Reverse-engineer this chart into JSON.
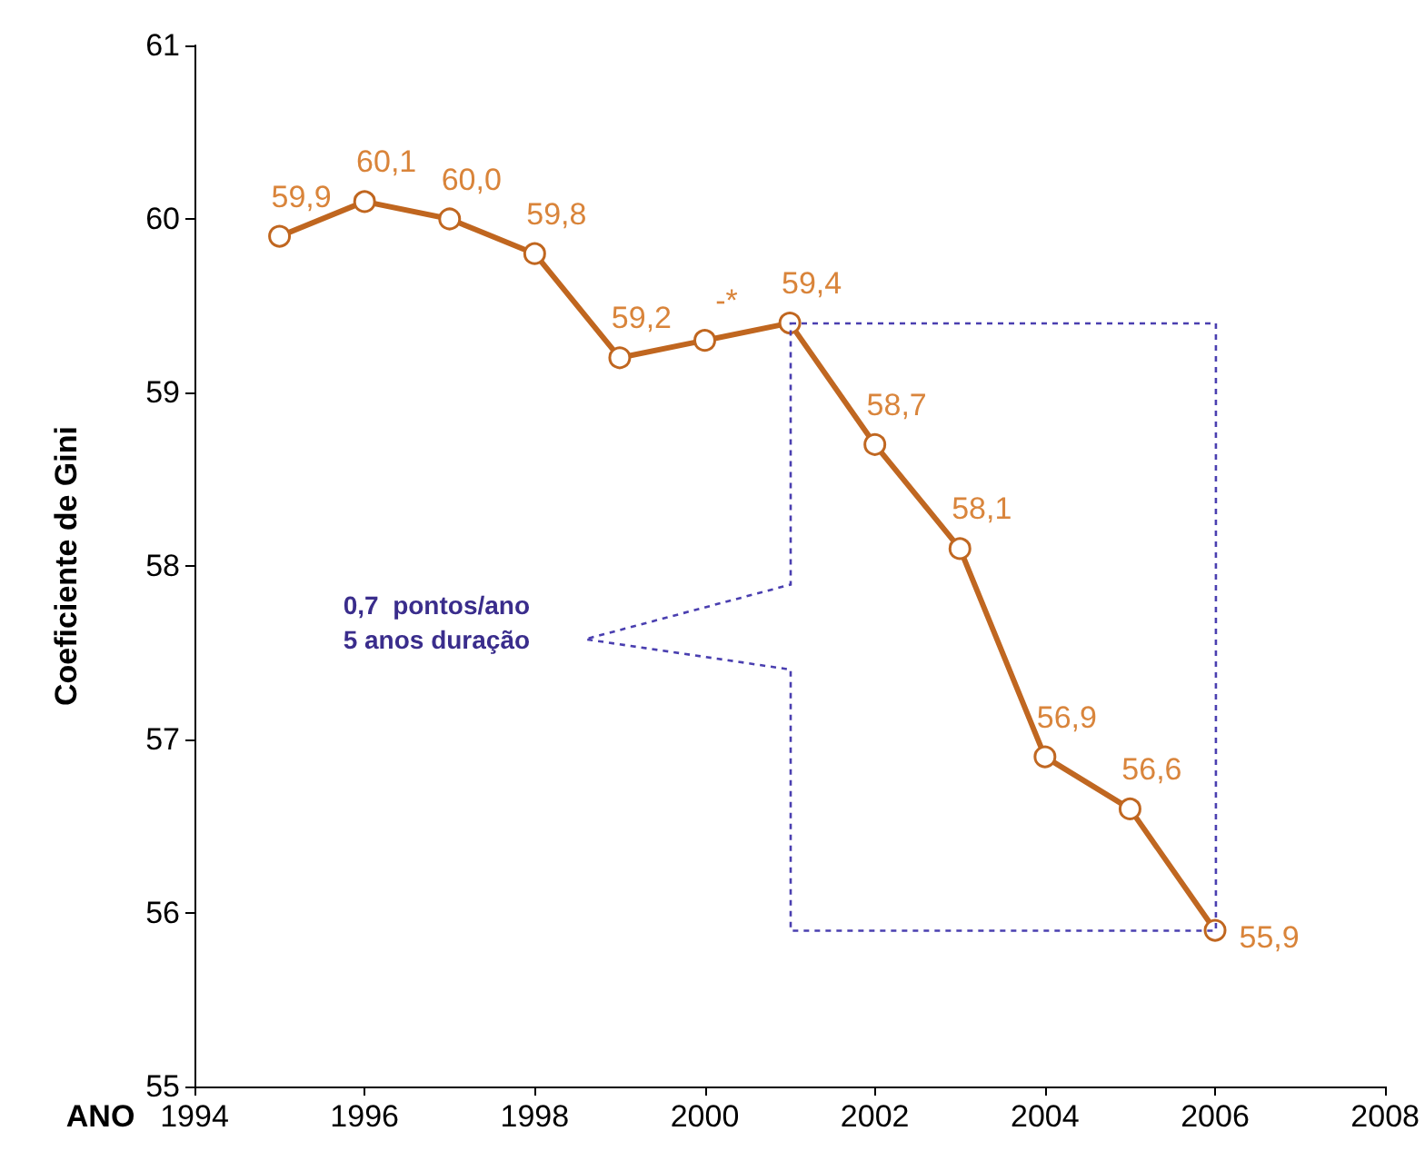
{
  "chart_data": {
    "type": "line",
    "xlabel": "ANO",
    "ylabel": "Coeficiente de Gini",
    "x": [
      1995,
      1996,
      1997,
      1998,
      1999,
      2000,
      2001,
      2002,
      2003,
      2004,
      2005,
      2006
    ],
    "series": [
      {
        "color": "#c0661f",
        "values": [
          59.9,
          60.1,
          60.0,
          59.8,
          59.2,
          59.3,
          59.4,
          58.7,
          58.1,
          56.9,
          56.6,
          55.9
        ],
        "value_labels": [
          "59,9",
          "60,1",
          "60,0",
          "59,8",
          "59,2",
          "-*",
          "59,4",
          "58,7",
          "58,1",
          "56,9",
          "56,6",
          "55,9"
        ]
      }
    ],
    "xlim": [
      1994,
      2008
    ],
    "xticks": [
      1994,
      1996,
      1998,
      2000,
      2002,
      2004,
      2006,
      2008
    ],
    "ylim": [
      55,
      61
    ],
    "yticks": [
      55,
      56,
      57,
      58,
      59,
      60,
      61
    ],
    "marker": "circle",
    "annotations": [
      "0,7  pontos/ano\n5 anos duração"
    ]
  }
}
